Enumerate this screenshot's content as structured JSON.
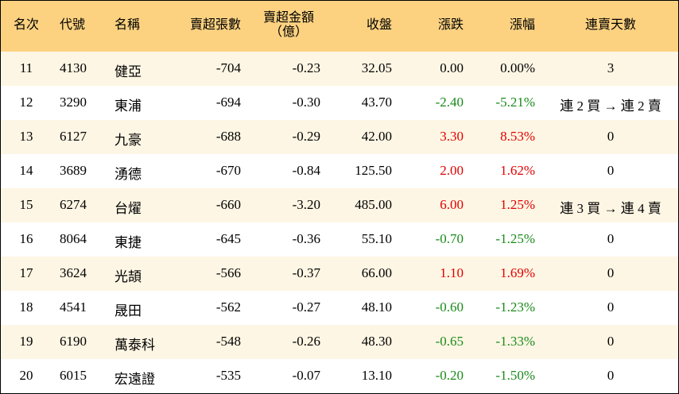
{
  "table": {
    "header": [
      "名次",
      "代號",
      "名稱",
      "賣超張數",
      [
        "賣超金額",
        "（億）"
      ],
      "收盤",
      "漲跌",
      "漲幅",
      "連賣天數"
    ],
    "rows": [
      [
        "11",
        "4130",
        "健亞",
        "-704",
        "-0.23",
        "32.05",
        "0.00",
        "0.00%",
        "3"
      ],
      [
        "12",
        "3290",
        "東浦",
        "-694",
        "-0.30",
        "43.70",
        "-2.40",
        "-5.21%",
        "連 2 買 → 連 2 賣"
      ],
      [
        "13",
        "6127",
        "九豪",
        "-688",
        "-0.29",
        "42.00",
        "3.30",
        "8.53%",
        "0"
      ],
      [
        "14",
        "3689",
        "湧德",
        "-670",
        "-0.84",
        "125.50",
        "2.00",
        "1.62%",
        "0"
      ],
      [
        "15",
        "6274",
        "台燿",
        "-660",
        "-3.20",
        "485.00",
        "6.00",
        "1.25%",
        "連 3 買 → 連 4 賣"
      ],
      [
        "16",
        "8064",
        "東捷",
        "-645",
        "-0.36",
        "55.10",
        "-0.70",
        "-1.25%",
        "0"
      ],
      [
        "17",
        "3624",
        "光頡",
        "-566",
        "-0.37",
        "66.00",
        "1.10",
        "1.69%",
        "0"
      ],
      [
        "18",
        "4541",
        "晟田",
        "-562",
        "-0.27",
        "48.10",
        "-0.60",
        "-1.23%",
        "0"
      ],
      [
        "19",
        "6190",
        "萬泰科",
        "-548",
        "-0.26",
        "48.30",
        "-0.65",
        "-1.33%",
        "0"
      ],
      [
        "20",
        "6015",
        "宏遠證",
        "-535",
        "-0.07",
        "13.10",
        "-0.20",
        "-1.50%",
        "0"
      ]
    ],
    "colors": {
      "up": "#e00000",
      "down": "#1a8a1a",
      "flat": "#000000"
    }
  }
}
